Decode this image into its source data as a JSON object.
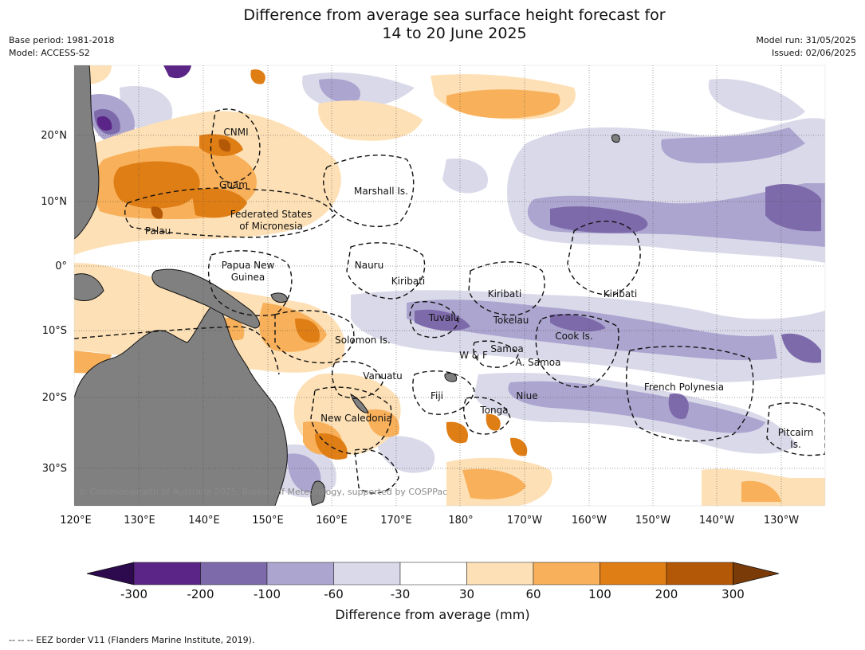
{
  "title": {
    "line1": "Difference from average sea surface height forecast for",
    "line2": "14 to 20 June 2025"
  },
  "meta": {
    "base_period": "Base period: 1981-2018",
    "model": "Model: ACCESS-S2",
    "model_run": "Model run: 31/05/2025",
    "issued": "Issued: 02/06/2025"
  },
  "axes": {
    "lon_ticks": [
      "120°E",
      "130°E",
      "140°E",
      "150°E",
      "160°E",
      "170°E",
      "180°",
      "170°W",
      "160°W",
      "150°W",
      "140°W",
      "130°W"
    ],
    "lat_ticks": [
      "20°N",
      "10°N",
      "0°",
      "10°S",
      "20°S",
      "30°S"
    ]
  },
  "regions": [
    {
      "id": "cnmi",
      "name": "CNMI"
    },
    {
      "id": "guam",
      "name": "Guam"
    },
    {
      "id": "marshall",
      "name": "Marshall Is."
    },
    {
      "id": "fsm1",
      "name": "Federated States"
    },
    {
      "id": "fsm2",
      "name": "of Micronesia"
    },
    {
      "id": "palau",
      "name": "Palau"
    },
    {
      "id": "png1",
      "name": "Papua New"
    },
    {
      "id": "png2",
      "name": "Guinea"
    },
    {
      "id": "nauru",
      "name": "Nauru"
    },
    {
      "id": "kiribati_w",
      "name": "Kiribati"
    },
    {
      "id": "kiribati_c",
      "name": "Kiribati"
    },
    {
      "id": "kiribati_e",
      "name": "Kiribati"
    },
    {
      "id": "tuvalu",
      "name": "Tuvalu"
    },
    {
      "id": "tokelau",
      "name": "Tokelau"
    },
    {
      "id": "cook",
      "name": "Cook Is."
    },
    {
      "id": "solomon",
      "name": "Solomon Is."
    },
    {
      "id": "samoa",
      "name": "Samoa"
    },
    {
      "id": "wf",
      "name": "W & F"
    },
    {
      "id": "asamoa",
      "name": "A. Samoa"
    },
    {
      "id": "vanuatu",
      "name": "Vanuatu"
    },
    {
      "id": "fiji",
      "name": "Fiji"
    },
    {
      "id": "niue",
      "name": "Niue"
    },
    {
      "id": "frpoly",
      "name": "French Polynesia"
    },
    {
      "id": "tonga",
      "name": "Tonga"
    },
    {
      "id": "newcal",
      "name": "New Caledonia"
    },
    {
      "id": "pitcairn1",
      "name": "Pitcairn"
    },
    {
      "id": "pitcairn2",
      "name": "Is."
    }
  ],
  "copyright": "© Commonwealth of Australia 2025, Bureau of Meteorology, supported by COSPPac",
  "colorbar": {
    "title": "Difference from average (mm)",
    "labels": [
      "-300",
      "-200",
      "-100",
      "-60",
      "-30",
      "30",
      "60",
      "100",
      "200",
      "300"
    ],
    "colors": {
      "extend_low": "#2d0a4e",
      "bins": [
        "#5a2586",
        "#7d6aaa",
        "#aca5cf",
        "#d9d9ea",
        "#ffffff",
        "#fde0b5",
        "#f8b05a",
        "#e07e16",
        "#b35806"
      ],
      "extend_high": "#7a3b08"
    }
  },
  "land_color": "#808080",
  "footer": "--  --  -- EEZ border V11 (Flanders Marine Institute, 2019)."
}
